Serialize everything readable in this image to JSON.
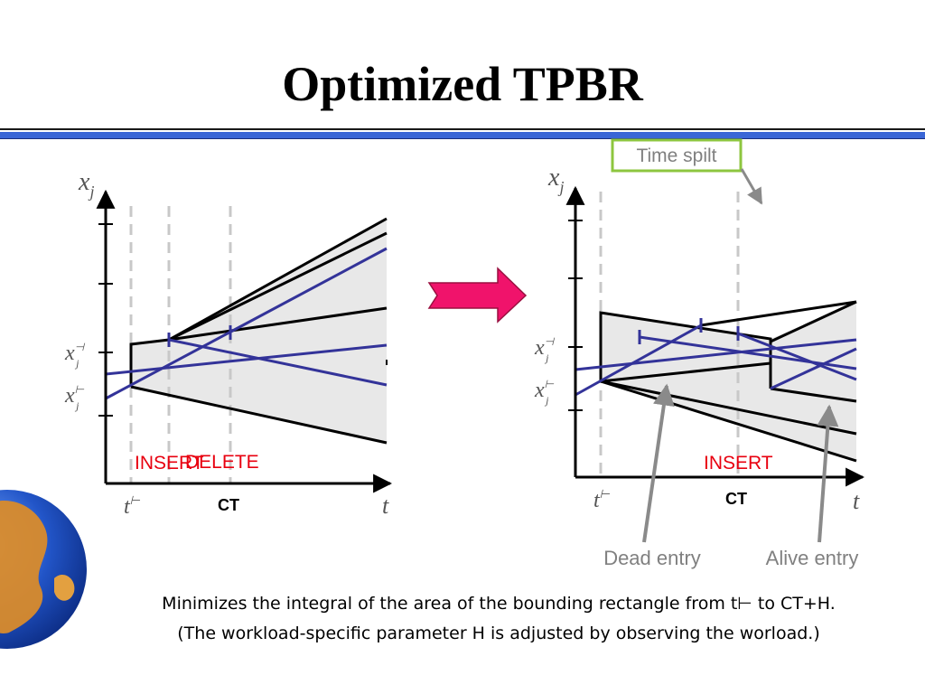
{
  "title": "Optimized TPBR",
  "callout": {
    "time_split": "Time spilt",
    "dead_entry": "Dead entry",
    "alive_entry": "Alive entry"
  },
  "left_diagram": {
    "y_axis": "x",
    "y_axis_sub": "j",
    "x_axis": "t",
    "t_start": "t",
    "t_start_sup": "⊢",
    "ct": "CT",
    "x_upper": "x",
    "x_upper_sup": "⊣",
    "x_upper_sub": "j",
    "x_lower": "x",
    "x_lower_sup": "⊢",
    "x_lower_sub": "j",
    "insert": "INSERT",
    "delete": "DELETE"
  },
  "right_diagram": {
    "y_axis": "x",
    "y_axis_sub": "j",
    "x_axis": "t",
    "t_start": "t",
    "t_start_sup": "⊢",
    "ct": "CT",
    "x_upper": "x",
    "x_upper_sup": "⊣",
    "x_upper_sub": "j",
    "x_lower": "x",
    "x_lower_sup": "⊢",
    "x_lower_sub": "j",
    "insert": "INSERT"
  },
  "caption": {
    "line1": "Minimizes the integral of the area of the bounding rectangle from t⊢ to CT+H.",
    "line2": "(The workload-specific parameter H is adjusted by observing the worload.)"
  },
  "colors": {
    "accent_band": "#3a66d6",
    "arrow": "#f0136b",
    "trajectory": "#333399",
    "label_red": "#e8000f",
    "callout_border": "#8dc63f",
    "pointer_gray": "#8a8a8a"
  }
}
